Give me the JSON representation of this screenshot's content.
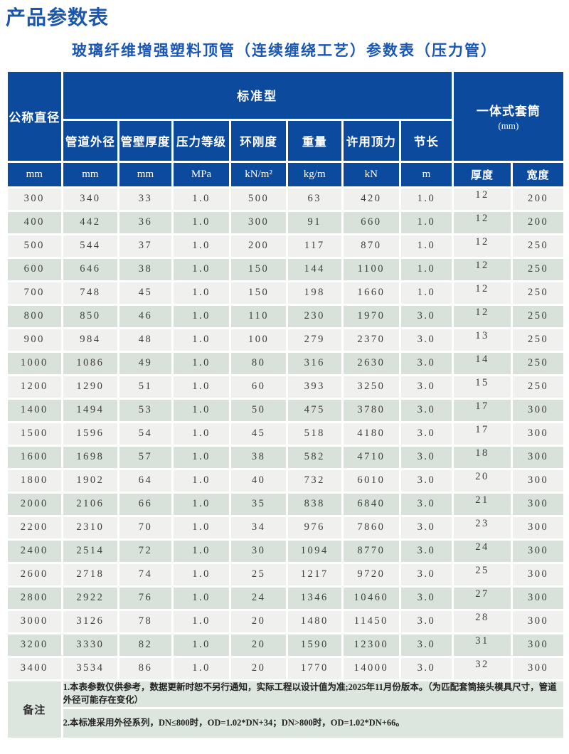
{
  "page": {
    "title": "产品参数表",
    "subtitle": "玻璃纤维增强塑料顶管（连续缠绕工艺）参数表（压力管）"
  },
  "table": {
    "header": {
      "nominal_diameter": "公称直径",
      "standard_group": "标准型",
      "sleeve_group": "一体式套筒",
      "sleeve_group_unit": "(mm)",
      "sub_headers": [
        "管道外径",
        "管壁厚度",
        "压力等级",
        "环刚度",
        "重量",
        "许用顶力",
        "节长"
      ],
      "units": [
        "mm",
        "mm",
        "mm",
        "MPa",
        "kN/m²",
        "kg/m",
        "kN",
        "m"
      ],
      "sleeve_columns": [
        "厚度",
        "宽度"
      ]
    },
    "rows": [
      [
        "300",
        "340",
        "33",
        "1.0",
        "500",
        "63",
        "420",
        "1.0",
        "12",
        "200"
      ],
      [
        "400",
        "442",
        "36",
        "1.0",
        "300",
        "91",
        "660",
        "1.0",
        "12",
        "200"
      ],
      [
        "500",
        "544",
        "37",
        "1.0",
        "200",
        "117",
        "870",
        "1.0",
        "12",
        "250"
      ],
      [
        "600",
        "646",
        "38",
        "1.0",
        "150",
        "144",
        "1100",
        "1.0",
        "12",
        "250"
      ],
      [
        "700",
        "748",
        "45",
        "1.0",
        "150",
        "198",
        "1660",
        "1.0",
        "12",
        "250"
      ],
      [
        "800",
        "850",
        "46",
        "1.0",
        "110",
        "230",
        "1970",
        "3.0",
        "12",
        "250"
      ],
      [
        "900",
        "984",
        "48",
        "1.0",
        "100",
        "279",
        "2370",
        "3.0",
        "13",
        "250"
      ],
      [
        "1000",
        "1086",
        "49",
        "1.0",
        "80",
        "316",
        "2630",
        "3.0",
        "14",
        "250"
      ],
      [
        "1200",
        "1290",
        "51",
        "1.0",
        "60",
        "393",
        "3250",
        "3.0",
        "15",
        "250"
      ],
      [
        "1400",
        "1494",
        "53",
        "1.0",
        "50",
        "475",
        "3780",
        "3.0",
        "17",
        "300"
      ],
      [
        "1500",
        "1596",
        "54",
        "1.0",
        "45",
        "518",
        "4180",
        "3.0",
        "17",
        "300"
      ],
      [
        "1600",
        "1698",
        "57",
        "1.0",
        "38",
        "582",
        "4710",
        "3.0",
        "18",
        "300"
      ],
      [
        "1800",
        "1902",
        "64",
        "1.0",
        "40",
        "732",
        "6010",
        "3.0",
        "20",
        "300"
      ],
      [
        "2000",
        "2106",
        "66",
        "1.0",
        "35",
        "838",
        "6840",
        "3.0",
        "21",
        "300"
      ],
      [
        "2200",
        "2310",
        "70",
        "1.0",
        "34",
        "976",
        "7860",
        "3.0",
        "23",
        "300"
      ],
      [
        "2400",
        "2514",
        "72",
        "1.0",
        "30",
        "1094",
        "8770",
        "3.0",
        "24",
        "300"
      ],
      [
        "2600",
        "2718",
        "74",
        "1.0",
        "25",
        "1217",
        "9720",
        "3.0",
        "25",
        "300"
      ],
      [
        "2800",
        "2922",
        "76",
        "1.0",
        "24",
        "1346",
        "10460",
        "3.0",
        "27",
        "300"
      ],
      [
        "3000",
        "3126",
        "78",
        "1.0",
        "20",
        "1480",
        "11450",
        "3.0",
        "28",
        "300"
      ],
      [
        "3200",
        "3330",
        "82",
        "1.0",
        "20",
        "1590",
        "12300",
        "3.0",
        "31",
        "300"
      ],
      [
        "3400",
        "3534",
        "86",
        "1.0",
        "20",
        "1770",
        "14000",
        "3.0",
        "32",
        "300"
      ]
    ],
    "remarks": {
      "label": "备注",
      "notes": [
        "1.本表参数仅供参考，数据更新时恕不另行通知，实际工程以设计值为准;2025年11月份版本。（为匹配套筒接头模具尺寸，管道外径可能存在变化）",
        "2.本标准采用外径系列，DN≤800时，OD=1.02*DN+34；DN>800时，OD=1.02*DN+66。"
      ]
    }
  },
  "colors": {
    "header_blue": "#0c4a9e",
    "row_light": "#f0f0ee",
    "row_green": "#d8e2da",
    "remarks_bg": "#dce6de",
    "title_blue": "#1c57ae",
    "subtitle_blue": "#1a56b4"
  }
}
